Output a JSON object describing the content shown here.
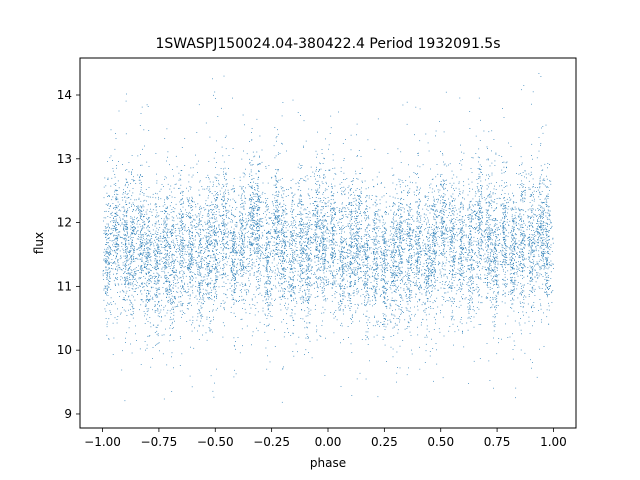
{
  "chart_data": {
    "type": "scatter",
    "title": "1SWASPJ150024.04-380422.4 Period 1932091.5s",
    "xlabel": "phase",
    "ylabel": "flux",
    "xlim": [
      -1.1,
      1.1
    ],
    "ylim": [
      8.78,
      14.58
    ],
    "xticks": [
      "−1.00",
      "−0.75",
      "−0.50",
      "−0.25",
      "0.00",
      "0.25",
      "0.50",
      "0.75",
      "1.00"
    ],
    "xtick_values": [
      -1.0,
      -0.75,
      -0.5,
      -0.25,
      0.0,
      0.25,
      0.5,
      0.75,
      1.0
    ],
    "yticks": [
      "9",
      "10",
      "11",
      "12",
      "13",
      "14"
    ],
    "ytick_values": [
      9,
      10,
      11,
      12,
      13,
      14
    ],
    "grid": false,
    "marker_color": "#1f77b4",
    "series": [
      {
        "band_centers": [
          [
            -0.98,
            11.4
          ],
          [
            -0.94,
            11.8
          ],
          [
            -0.9,
            11.6
          ],
          [
            -0.87,
            11.5
          ],
          [
            -0.83,
            11.9
          ],
          [
            -0.8,
            11.4
          ],
          [
            -0.76,
            11.3
          ],
          [
            -0.72,
            11.6
          ],
          [
            -0.69,
            11.3
          ],
          [
            -0.65,
            11.7
          ],
          [
            -0.61,
            11.5
          ],
          [
            -0.57,
            11.4
          ],
          [
            -0.53,
            11.6
          ],
          [
            -0.5,
            11.8
          ],
          [
            -0.46,
            11.9
          ],
          [
            -0.42,
            11.5
          ],
          [
            -0.38,
            11.7
          ],
          [
            -0.34,
            12.1
          ],
          [
            -0.31,
            11.9
          ],
          [
            -0.27,
            11.4
          ],
          [
            -0.23,
            12.0
          ],
          [
            -0.2,
            11.6
          ],
          [
            -0.16,
            11.5
          ],
          [
            -0.12,
            11.7
          ],
          [
            -0.09,
            11.4
          ],
          [
            -0.05,
            11.9
          ],
          [
            -0.02,
            11.6
          ],
          [
            0.02,
            11.8
          ],
          [
            0.06,
            11.5
          ],
          [
            0.1,
            11.6
          ],
          [
            0.13,
            11.8
          ],
          [
            0.17,
            11.4
          ],
          [
            0.21,
            11.5
          ],
          [
            0.25,
            11.3
          ],
          [
            0.29,
            11.4
          ],
          [
            0.32,
            11.7
          ],
          [
            0.36,
            11.5
          ],
          [
            0.4,
            11.6
          ],
          [
            0.44,
            11.4
          ],
          [
            0.47,
            11.7
          ],
          [
            0.51,
            11.9
          ],
          [
            0.55,
            11.6
          ],
          [
            0.59,
            11.7
          ],
          [
            0.63,
            11.5
          ],
          [
            0.67,
            12.0
          ],
          [
            0.71,
            11.8
          ],
          [
            0.74,
            11.4
          ],
          [
            0.78,
            11.9
          ],
          [
            0.82,
            11.5
          ],
          [
            0.86,
            11.7
          ],
          [
            0.9,
            11.6
          ],
          [
            0.94,
            11.9
          ],
          [
            0.97,
            11.7
          ]
        ],
        "band_sigma": 0.55,
        "outlier_fraction": 0.03
      }
    ]
  }
}
